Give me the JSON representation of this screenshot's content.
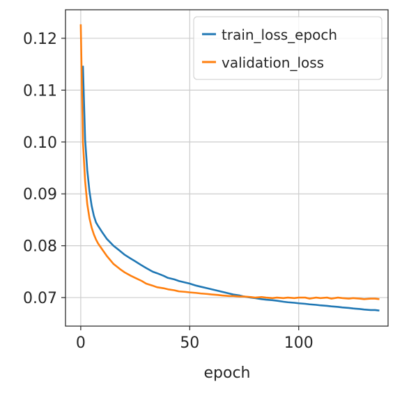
{
  "chart_data": {
    "type": "line",
    "title": "",
    "xlabel": "epoch",
    "ylabel": "",
    "xlim": [
      -7,
      141
    ],
    "ylim": [
      0.0645,
      0.1255
    ],
    "xticks": [
      0,
      50,
      100
    ],
    "xtick_labels": [
      "0",
      "50",
      "100"
    ],
    "yticks": [
      0.07,
      0.08,
      0.09,
      0.1,
      0.11,
      0.12
    ],
    "ytick_labels": [
      "0.07",
      "0.08",
      "0.09",
      "0.10",
      "0.11",
      "0.12"
    ],
    "grid": true,
    "legend_position": "top-right",
    "series": [
      {
        "name": "train_loss_epoch",
        "color": "#1f77b4",
        "x": [
          1,
          2,
          3,
          4,
          5,
          6,
          7,
          8,
          10,
          12,
          15,
          18,
          20,
          23,
          25,
          28,
          30,
          33,
          35,
          38,
          40,
          43,
          45,
          48,
          50,
          53,
          55,
          58,
          60,
          63,
          65,
          68,
          70,
          73,
          75,
          78,
          80,
          83,
          85,
          88,
          90,
          93,
          95,
          98,
          100,
          103,
          105,
          108,
          110,
          113,
          115,
          118,
          120,
          123,
          125,
          128,
          130,
          133,
          135,
          137
        ],
        "values": [
          0.1147,
          0.1005,
          0.0945,
          0.0905,
          0.0877,
          0.0858,
          0.0845,
          0.0838,
          0.0825,
          0.0813,
          0.08,
          0.079,
          0.0783,
          0.0775,
          0.077,
          0.0762,
          0.0757,
          0.075,
          0.0747,
          0.0742,
          0.0738,
          0.0735,
          0.0732,
          0.0729,
          0.0727,
          0.0723,
          0.0721,
          0.0718,
          0.0716,
          0.0713,
          0.0711,
          0.0708,
          0.0706,
          0.0704,
          0.0702,
          0.07,
          0.0699,
          0.0697,
          0.0696,
          0.0695,
          0.0694,
          0.0692,
          0.0691,
          0.069,
          0.0689,
          0.0688,
          0.0687,
          0.0686,
          0.0685,
          0.0684,
          0.0683,
          0.0682,
          0.0681,
          0.068,
          0.0679,
          0.0678,
          0.0677,
          0.0676,
          0.0676,
          0.0675
        ]
      },
      {
        "name": "validation_loss",
        "color": "#ff7f0e",
        "x": [
          0,
          1,
          2,
          3,
          4,
          5,
          6,
          7,
          8,
          10,
          12,
          15,
          18,
          20,
          23,
          25,
          28,
          30,
          33,
          35,
          38,
          40,
          43,
          45,
          48,
          50,
          53,
          55,
          58,
          60,
          63,
          65,
          68,
          70,
          73,
          75,
          78,
          80,
          83,
          85,
          88,
          90,
          93,
          95,
          98,
          100,
          103,
          105,
          108,
          110,
          113,
          115,
          118,
          120,
          123,
          125,
          128,
          130,
          133,
          135,
          137
        ],
        "values": [
          0.1227,
          0.1,
          0.0925,
          0.088,
          0.0853,
          0.0835,
          0.0822,
          0.0812,
          0.0804,
          0.0792,
          0.078,
          0.0765,
          0.0755,
          0.0749,
          0.0742,
          0.0738,
          0.0732,
          0.0727,
          0.0723,
          0.072,
          0.0718,
          0.0716,
          0.0714,
          0.0712,
          0.0711,
          0.071,
          0.0709,
          0.0708,
          0.0707,
          0.0706,
          0.0705,
          0.0704,
          0.0703,
          0.0703,
          0.0702,
          0.0702,
          0.0701,
          0.07,
          0.0701,
          0.07,
          0.0699,
          0.07,
          0.0699,
          0.07,
          0.0699,
          0.07,
          0.07,
          0.0698,
          0.07,
          0.0699,
          0.07,
          0.0698,
          0.07,
          0.0699,
          0.0698,
          0.0699,
          0.0698,
          0.0697,
          0.0698,
          0.0698,
          0.0697
        ]
      }
    ]
  }
}
